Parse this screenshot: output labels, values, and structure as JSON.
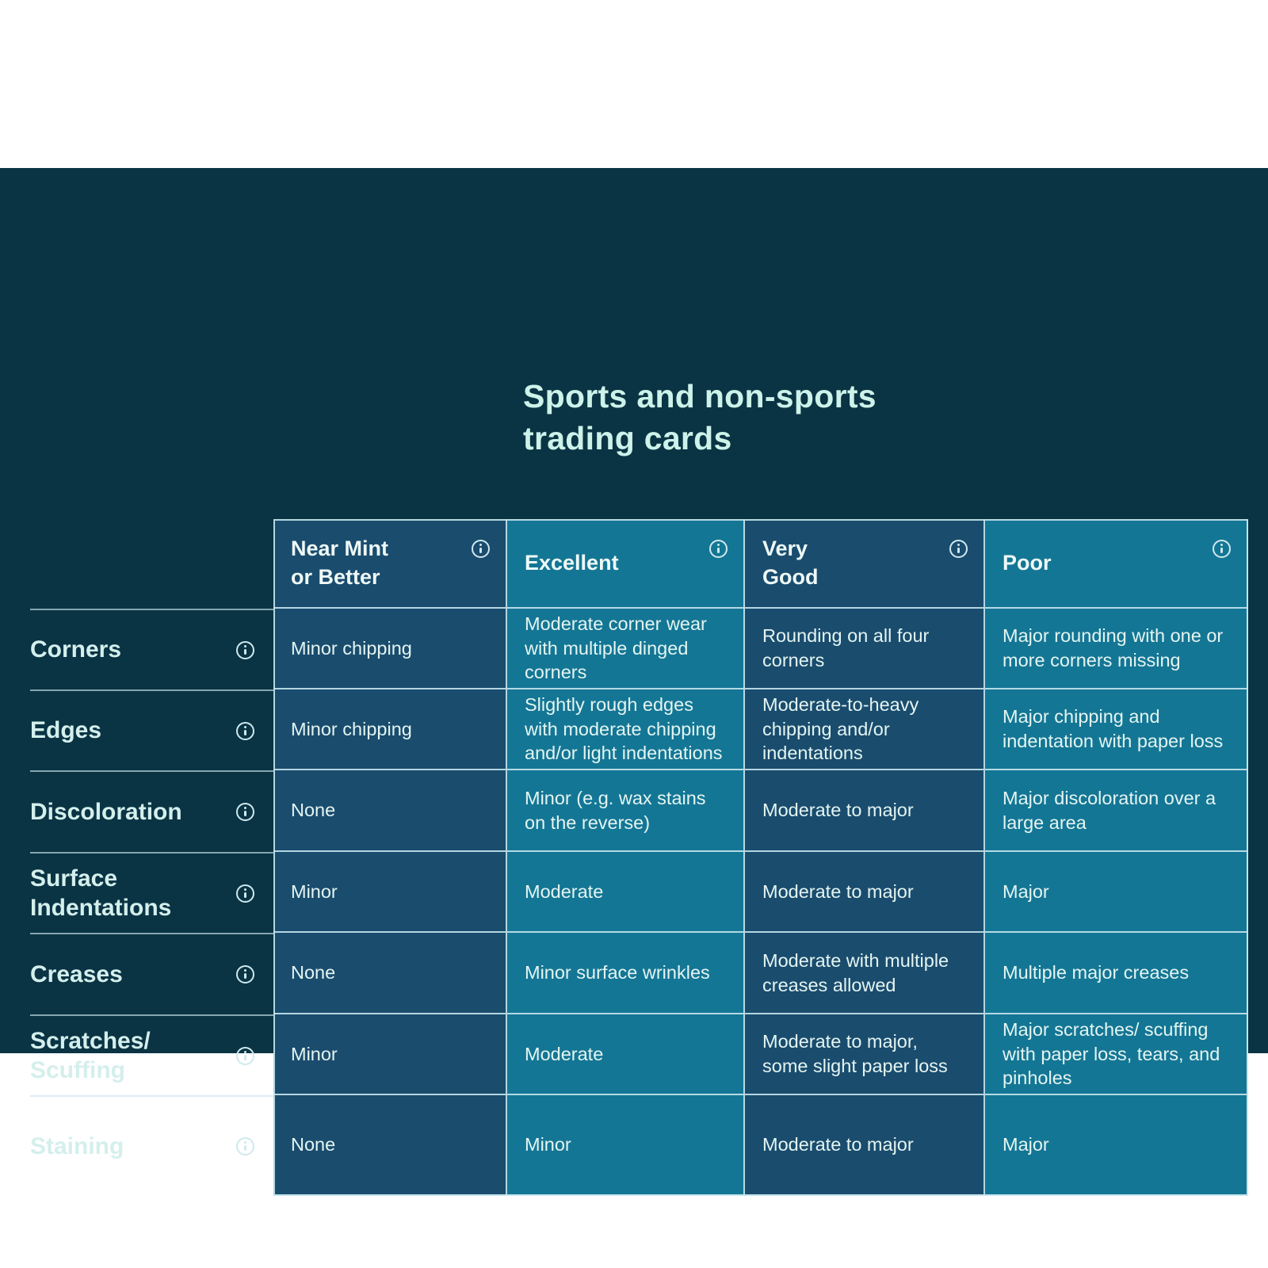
{
  "title": "Sports and non-sports\ntrading cards",
  "colors": {
    "panel_background": "#0a3444",
    "cell_dark_blue": "#1a4c6e",
    "cell_teal": "#147695",
    "grid_line": "#c7e5ec",
    "title_text": "#cdf2e9",
    "cell_text": "#e4f5f1"
  },
  "columns": [
    {
      "label": "Near Mint\nor Better",
      "info_icon": "info-icon"
    },
    {
      "label": "Excellent",
      "info_icon": "info-icon"
    },
    {
      "label": "Very\nGood",
      "info_icon": "info-icon"
    },
    {
      "label": "Poor",
      "info_icon": "info-icon"
    }
  ],
  "rows": [
    {
      "label": "Corners",
      "info_icon": "info-icon",
      "cells": [
        "Minor chipping",
        "Moderate corner wear with multiple dinged corners",
        "Rounding on all four corners",
        "Major rounding with one or more corners missing"
      ]
    },
    {
      "label": "Edges",
      "info_icon": "info-icon",
      "cells": [
        "Minor chipping",
        "Slightly rough edges with moderate chipping and/or light indentations",
        "Moderate-to-heavy chipping and/or indentations",
        "Major chipping and indentation with paper loss"
      ]
    },
    {
      "label": "Discoloration",
      "info_icon": "info-icon",
      "cells": [
        "None",
        "Minor (e.g. wax stains on the reverse)",
        "Moderate to major",
        "Major discoloration over a large area"
      ]
    },
    {
      "label": "Surface\nIndentations",
      "info_icon": "info-icon",
      "cells": [
        "Minor",
        "Moderate",
        "Moderate to major",
        "Major"
      ]
    },
    {
      "label": "Creases",
      "info_icon": "info-icon",
      "cells": [
        "None",
        "Minor surface wrinkles",
        "Moderate with multiple creases allowed",
        "Multiple major creases"
      ]
    },
    {
      "label": "Scratches/\nScuffing",
      "info_icon": "info-icon",
      "cells": [
        "Minor",
        "Moderate",
        "Moderate to major, some slight paper loss",
        "Major scratches/ scuffing with paper loss, tears, and pinholes"
      ]
    },
    {
      "label": "Staining",
      "info_icon": "info-icon",
      "cells": [
        "None",
        "Minor",
        "Moderate to major",
        "Major"
      ]
    }
  ]
}
